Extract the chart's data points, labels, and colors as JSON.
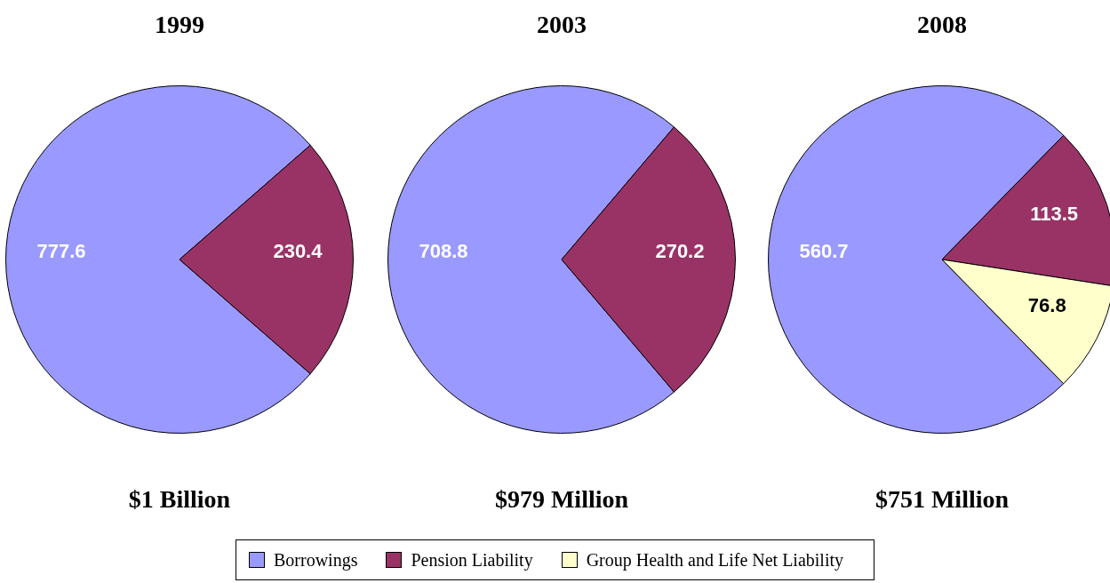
{
  "chart_data": [
    {
      "type": "pie",
      "title": "1999",
      "categories": [
        null,
        null
      ],
      "values": [
        777.6,
        230.4
      ],
      "colors": [
        "#9999ff",
        "#993366"
      ],
      "data_labels": true,
      "annotations": [
        "$1 Billion"
      ]
    },
    {
      "type": "pie",
      "title": "2003",
      "categories": [
        null,
        null
      ],
      "values": [
        708.8,
        270.2
      ],
      "colors": [
        "#9999ff",
        "#993366"
      ],
      "data_labels": true,
      "annotations": [
        "$979 Million"
      ]
    },
    {
      "type": "pie",
      "title": "2008",
      "categories": [
        "Borrowings",
        "Pension Liability",
        "Group Health and Life Net Liability"
      ],
      "values": [
        560.7,
        113.5,
        76.8
      ],
      "colors": [
        "#9999ff",
        "#993366",
        "#ffffcc"
      ],
      "data_labels": true,
      "annotations": [
        "$751 Million"
      ],
      "legend": "bottom"
    }
  ]
}
